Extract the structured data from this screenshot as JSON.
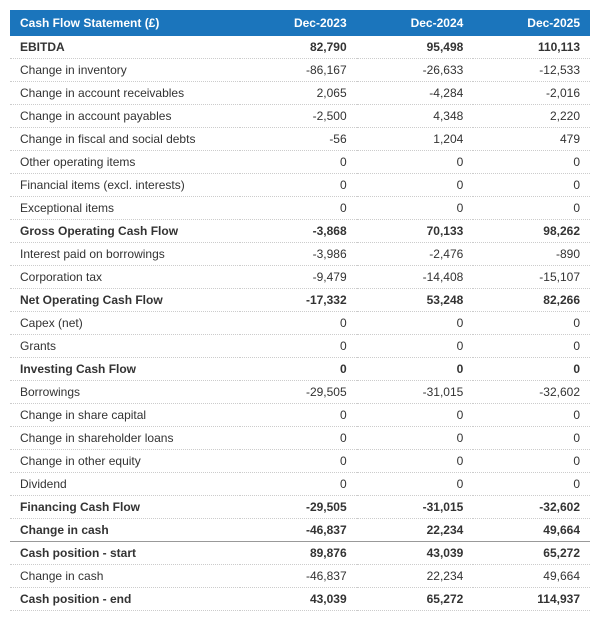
{
  "table": {
    "header": {
      "title": "Cash Flow Statement (£)",
      "col1": "Dec-2023",
      "col2": "Dec-2024",
      "col3": "Dec-2025"
    },
    "rows": [
      {
        "label": "EBITDA",
        "v1": "82,790",
        "v2": "95,498",
        "v3": "110,113",
        "bold": true
      },
      {
        "label": "Change in inventory",
        "v1": "-86,167",
        "v2": "-26,633",
        "v3": "-12,533",
        "bold": false
      },
      {
        "label": "Change in account receivables",
        "v1": "2,065",
        "v2": "-4,284",
        "v3": "-2,016",
        "bold": false
      },
      {
        "label": "Change in account payables",
        "v1": "-2,500",
        "v2": "4,348",
        "v3": "2,220",
        "bold": false
      },
      {
        "label": "Change in fiscal and social debts",
        "v1": "-56",
        "v2": "1,204",
        "v3": "479",
        "bold": false
      },
      {
        "label": "Other operating items",
        "v1": "0",
        "v2": "0",
        "v3": "0",
        "bold": false
      },
      {
        "label": "Financial items (excl. interests)",
        "v1": "0",
        "v2": "0",
        "v3": "0",
        "bold": false
      },
      {
        "label": "Exceptional items",
        "v1": "0",
        "v2": "0",
        "v3": "0",
        "bold": false
      },
      {
        "label": "Gross Operating Cash Flow",
        "v1": "-3,868",
        "v2": "70,133",
        "v3": "98,262",
        "bold": true
      },
      {
        "label": "Interest paid on borrowings",
        "v1": "-3,986",
        "v2": "-2,476",
        "v3": "-890",
        "bold": false
      },
      {
        "label": "Corporation tax",
        "v1": "-9,479",
        "v2": "-14,408",
        "v3": "-15,107",
        "bold": false
      },
      {
        "label": "Net Operating Cash Flow",
        "v1": "-17,332",
        "v2": "53,248",
        "v3": "82,266",
        "bold": true
      },
      {
        "label": "Capex (net)",
        "v1": "0",
        "v2": "0",
        "v3": "0",
        "bold": false
      },
      {
        "label": "Grants",
        "v1": "0",
        "v2": "0",
        "v3": "0",
        "bold": false
      },
      {
        "label": "Investing Cash Flow",
        "v1": "0",
        "v2": "0",
        "v3": "0",
        "bold": true
      },
      {
        "label": "Borrowings",
        "v1": "-29,505",
        "v2": "-31,015",
        "v3": "-32,602",
        "bold": false
      },
      {
        "label": "Change in share capital",
        "v1": "0",
        "v2": "0",
        "v3": "0",
        "bold": false
      },
      {
        "label": "Change in shareholder loans",
        "v1": "0",
        "v2": "0",
        "v3": "0",
        "bold": false
      },
      {
        "label": "Change in other equity",
        "v1": "0",
        "v2": "0",
        "v3": "0",
        "bold": false
      },
      {
        "label": "Dividend",
        "v1": "0",
        "v2": "0",
        "v3": "0",
        "bold": false
      },
      {
        "label": "Financing Cash Flow",
        "v1": "-29,505",
        "v2": "-31,015",
        "v3": "-32,602",
        "bold": true
      },
      {
        "label": "Change in cash",
        "v1": "-46,837",
        "v2": "22,234",
        "v3": "49,664",
        "bold": true
      },
      {
        "label": "Cash position - start",
        "v1": "89,876",
        "v2": "43,039",
        "v3": "65,272",
        "bold": true,
        "gap": true
      },
      {
        "label": "Change in cash",
        "v1": "-46,837",
        "v2": "22,234",
        "v3": "49,664",
        "bold": false
      },
      {
        "label": "Cash position - end",
        "v1": "43,039",
        "v2": "65,272",
        "v3": "114,937",
        "bold": true
      }
    ]
  },
  "colors": {
    "header_bg": "#1b75bc",
    "header_text": "#ffffff",
    "text": "#333333",
    "border_dotted": "#cccccc",
    "border_solid": "#999999"
  }
}
